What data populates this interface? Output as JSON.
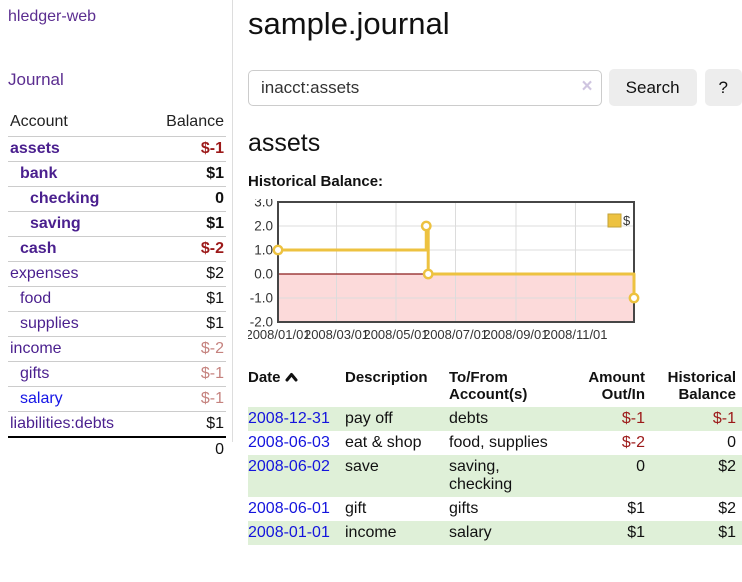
{
  "colors": {
    "accent_purple": "#5b2d90",
    "account_purple": "#4a1f8e",
    "link_blue": "#1414dd",
    "negative_strong": "#9c1919",
    "negative_soft": "#c5827e",
    "row_stripe_green": "#dff0d8",
    "series_yellow": "#edc240",
    "negative_region_pink": "#fcdada",
    "zero_line_red": "#8b1c1c",
    "chart_border": "#464646",
    "grid_gray": "#dcdcdc"
  },
  "sidebar": {
    "brand": "hledger-web",
    "nav": [
      {
        "label": "Journal"
      }
    ],
    "accounts_table": {
      "headers": [
        "Account",
        "Balance"
      ],
      "rows": [
        {
          "account": "assets",
          "balance": "$-1",
          "depth": 0,
          "bold": true,
          "balance_class": "neg-strong",
          "link_class": ""
        },
        {
          "account": "bank",
          "balance": "$1",
          "depth": 1,
          "bold": true,
          "balance_class": "",
          "link_class": ""
        },
        {
          "account": "checking",
          "balance": "0",
          "depth": 2,
          "bold": true,
          "balance_class": "",
          "link_class": ""
        },
        {
          "account": "saving",
          "balance": "$1",
          "depth": 2,
          "bold": true,
          "balance_class": "",
          "link_class": ""
        },
        {
          "account": "cash",
          "balance": "$-2",
          "depth": 1,
          "bold": true,
          "balance_class": "neg-strong",
          "link_class": ""
        },
        {
          "account": "expenses",
          "balance": "$2",
          "depth": 0,
          "bold": false,
          "balance_class": "",
          "link_class": ""
        },
        {
          "account": "food",
          "balance": "$1",
          "depth": 1,
          "bold": false,
          "balance_class": "",
          "link_class": ""
        },
        {
          "account": "supplies",
          "balance": "$1",
          "depth": 1,
          "bold": false,
          "balance_class": "",
          "link_class": ""
        },
        {
          "account": "income",
          "balance": "$-2",
          "depth": 0,
          "bold": false,
          "balance_class": "neg-soft",
          "link_class": ""
        },
        {
          "account": "gifts",
          "balance": "$-1",
          "depth": 1,
          "bold": false,
          "balance_class": "neg-soft",
          "link_class": ""
        },
        {
          "account": "salary",
          "balance": "$-1",
          "depth": 1,
          "bold": false,
          "balance_class": "neg-soft",
          "link_class": "blue"
        },
        {
          "account": "liabilities:debts",
          "balance": "$1",
          "depth": 0,
          "bold": false,
          "balance_class": "",
          "link_class": ""
        }
      ],
      "total": "0"
    }
  },
  "header": {
    "title": "sample.journal"
  },
  "search": {
    "value": "inacct:assets",
    "clear_icon": "×",
    "button_label": "Search",
    "help_label": "?"
  },
  "account_page": {
    "heading": "assets",
    "chart_label": "Historical Balance:"
  },
  "chart_data": {
    "type": "line",
    "title": "Historical Balance",
    "step": true,
    "series": [
      {
        "name": "$",
        "color": "#edc240",
        "points": [
          [
            "2008-01-01",
            1
          ],
          [
            "2008-06-01",
            2
          ],
          [
            "2008-06-03",
            0
          ],
          [
            "2008-12-31",
            -1
          ]
        ]
      }
    ],
    "xlim": [
      "2008-01-01",
      "2008-12-31"
    ],
    "ylim": [
      -2.0,
      3.0
    ],
    "yticks": [
      3.0,
      2.0,
      1.0,
      0.0,
      -1.0,
      -2.0
    ],
    "xticks": [
      "2008/01/01",
      "2008/03/01",
      "2008/05/01",
      "2008/07/01",
      "2008/09/01",
      "2008/11/01"
    ],
    "grid": true,
    "legend_position": "top-right",
    "legend_label": "$",
    "negative_region": true
  },
  "transactions": {
    "headers": {
      "date": "Date",
      "description": "Description",
      "accounts": "To/From Account(s)",
      "amount": "Amount Out/In",
      "balance": "Historical Balance"
    },
    "sort": {
      "column": "date",
      "direction": "ascending"
    },
    "rows": [
      {
        "date": "2008-12-31",
        "description": "pay off",
        "accounts": "debts",
        "amount": "$-1",
        "balance": "$-1"
      },
      {
        "date": "2008-06-03",
        "description": "eat & shop",
        "accounts": "food, supplies",
        "amount": "$-2",
        "balance": "0"
      },
      {
        "date": "2008-06-02",
        "description": "save",
        "accounts": "saving, checking",
        "amount": "0",
        "balance": "$2"
      },
      {
        "date": "2008-06-01",
        "description": "gift",
        "accounts": "gifts",
        "amount": "$1",
        "balance": "$2"
      },
      {
        "date": "2008-01-01",
        "description": "income",
        "accounts": "salary",
        "amount": "$1",
        "balance": "$1"
      }
    ]
  }
}
